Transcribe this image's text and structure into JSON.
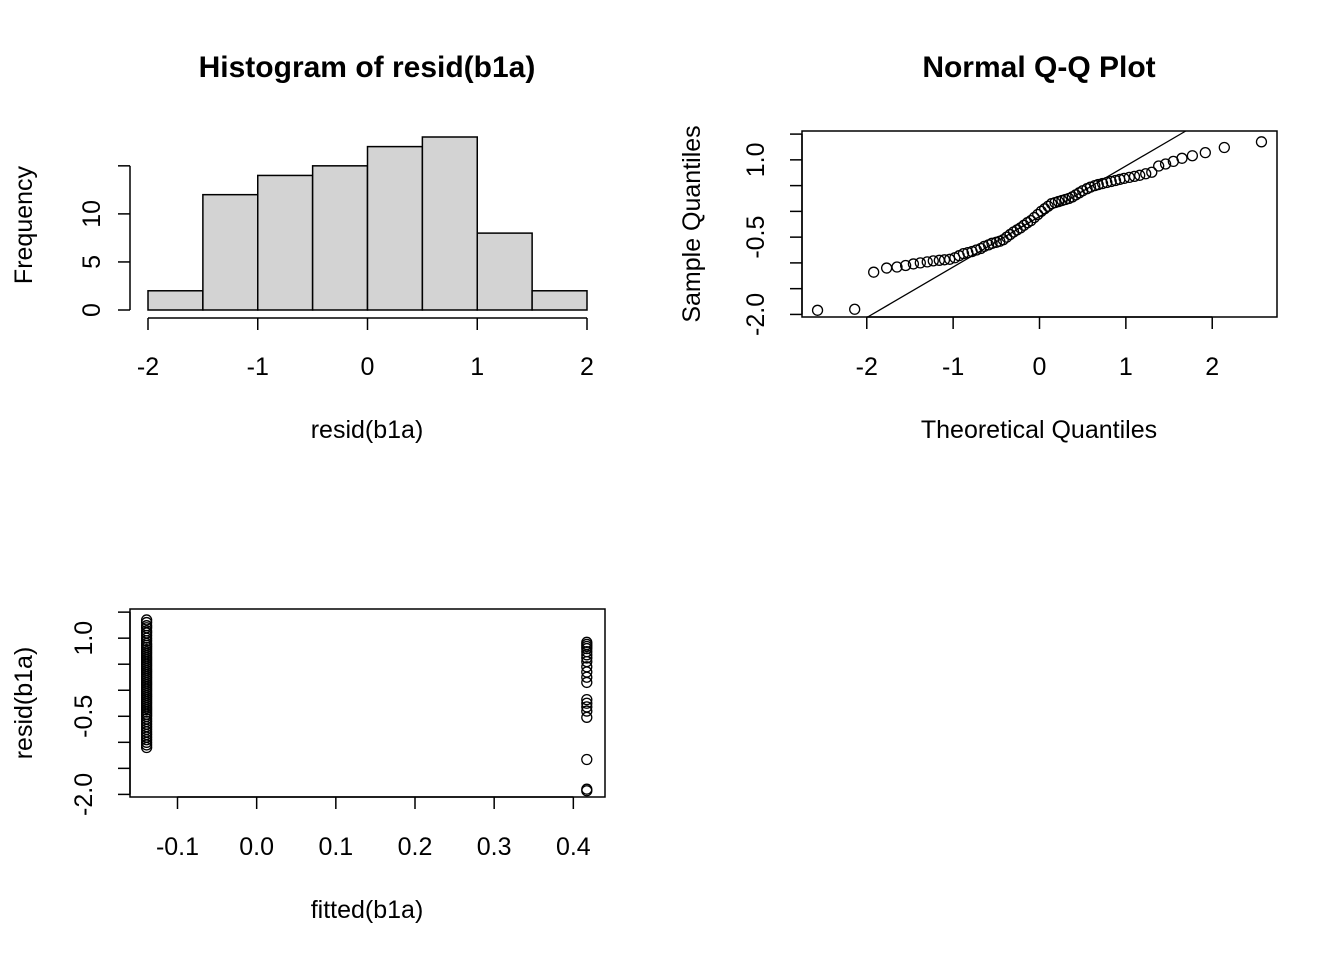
{
  "colors": {
    "bar_fill": "#d3d3d3",
    "stroke": "#000000",
    "background": "#ffffff"
  },
  "chart_data": [
    {
      "id": "hist",
      "type": "bar",
      "title": "Histogram of resid(b1a)",
      "xlabel": "resid(b1a)",
      "ylabel": "Frequency",
      "bins": [
        {
          "from": -2.0,
          "to": -1.5,
          "count": 2
        },
        {
          "from": -1.5,
          "to": -1.0,
          "count": 12
        },
        {
          "from": -1.0,
          "to": -0.5,
          "count": 14
        },
        {
          "from": -0.5,
          "to": 0.0,
          "count": 15
        },
        {
          "from": 0.0,
          "to": 0.5,
          "count": 17
        },
        {
          "from": 0.5,
          "to": 1.0,
          "count": 18
        },
        {
          "from": 1.0,
          "to": 1.5,
          "count": 8
        },
        {
          "from": 1.5,
          "to": 2.0,
          "count": 2
        }
      ],
      "xlim": [
        -2,
        2
      ],
      "ylim": [
        0,
        18
      ],
      "xticks": [
        -2,
        -1,
        0,
        1,
        2
      ],
      "xtick_labels": [
        "-2",
        "-1",
        "0",
        "1",
        "2"
      ],
      "yticks": [
        0,
        5,
        10,
        15
      ],
      "ytick_labels": [
        "0",
        "5",
        "10",
        ""
      ],
      "grid": false
    },
    {
      "id": "qq",
      "type": "scatter",
      "title": "Normal Q-Q Plot",
      "xlabel": "Theoretical Quantiles",
      "ylabel": "Sample Quantiles",
      "xlim": [
        -2.75,
        2.75
      ],
      "ylim": [
        -2.05,
        1.56
      ],
      "xticks": [
        -2,
        -1,
        0,
        1,
        2
      ],
      "xtick_labels": [
        "-2",
        "-1",
        "0",
        "1",
        "2"
      ],
      "yticks": [
        -2.0,
        -1.5,
        -1.0,
        -0.5,
        0.0,
        0.5,
        1.0,
        1.5
      ],
      "ytick_labels": [
        "-2.0",
        "",
        "",
        "-0.5",
        "",
        "",
        "1.0",
        ""
      ],
      "reference_line": {
        "intercept": -0.1,
        "slope": 0.98
      },
      "points": [
        [
          -2.57,
          -1.92
        ],
        [
          -2.14,
          -1.9
        ],
        [
          -1.92,
          -1.18
        ],
        [
          -1.77,
          -1.1
        ],
        [
          -1.65,
          -1.08
        ],
        [
          -1.55,
          -1.05
        ],
        [
          -1.46,
          -1.02
        ],
        [
          -1.38,
          -1.0
        ],
        [
          -1.3,
          -0.98
        ],
        [
          -1.23,
          -0.96
        ],
        [
          -1.16,
          -0.95
        ],
        [
          -1.1,
          -0.94
        ],
        [
          -1.04,
          -0.93
        ],
        [
          -0.98,
          -0.9
        ],
        [
          -0.93,
          -0.86
        ],
        [
          -0.88,
          -0.82
        ],
        [
          -0.83,
          -0.8
        ],
        [
          -0.78,
          -0.78
        ],
        [
          -0.73,
          -0.75
        ],
        [
          -0.68,
          -0.72
        ],
        [
          -0.64,
          -0.68
        ],
        [
          -0.59,
          -0.65
        ],
        [
          -0.55,
          -0.62
        ],
        [
          -0.5,
          -0.6
        ],
        [
          -0.46,
          -0.58
        ],
        [
          -0.42,
          -0.55
        ],
        [
          -0.38,
          -0.5
        ],
        [
          -0.34,
          -0.45
        ],
        [
          -0.3,
          -0.4
        ],
        [
          -0.26,
          -0.36
        ],
        [
          -0.22,
          -0.32
        ],
        [
          -0.18,
          -0.27
        ],
        [
          -0.14,
          -0.22
        ],
        [
          -0.1,
          -0.18
        ],
        [
          -0.06,
          -0.12
        ],
        [
          -0.02,
          -0.06
        ],
        [
          0.02,
          0.0
        ],
        [
          0.06,
          0.05
        ],
        [
          0.1,
          0.1
        ],
        [
          0.14,
          0.15
        ],
        [
          0.18,
          0.17
        ],
        [
          0.22,
          0.19
        ],
        [
          0.26,
          0.21
        ],
        [
          0.3,
          0.23
        ],
        [
          0.34,
          0.25
        ],
        [
          0.38,
          0.28
        ],
        [
          0.42,
          0.32
        ],
        [
          0.46,
          0.36
        ],
        [
          0.5,
          0.4
        ],
        [
          0.55,
          0.44
        ],
        [
          0.59,
          0.47
        ],
        [
          0.64,
          0.5
        ],
        [
          0.68,
          0.52
        ],
        [
          0.73,
          0.54
        ],
        [
          0.78,
          0.56
        ],
        [
          0.83,
          0.58
        ],
        [
          0.88,
          0.6
        ],
        [
          0.93,
          0.62
        ],
        [
          0.98,
          0.64
        ],
        [
          1.04,
          0.66
        ],
        [
          1.1,
          0.68
        ],
        [
          1.16,
          0.7
        ],
        [
          1.23,
          0.73
        ],
        [
          1.3,
          0.76
        ],
        [
          1.38,
          0.88
        ],
        [
          1.46,
          0.92
        ],
        [
          1.55,
          0.97
        ],
        [
          1.65,
          1.03
        ],
        [
          1.77,
          1.08
        ],
        [
          1.92,
          1.14
        ],
        [
          2.14,
          1.24
        ],
        [
          2.57,
          1.35
        ]
      ],
      "grid": false
    },
    {
      "id": "resfit",
      "type": "scatter",
      "title": "",
      "xlabel": "fitted(b1a)",
      "ylabel": "resid(b1a)",
      "xlim": [
        -0.16,
        0.44
      ],
      "ylim": [
        -2.05,
        1.56
      ],
      "xticks": [
        -0.1,
        0.0,
        0.1,
        0.2,
        0.3,
        0.4
      ],
      "xtick_labels": [
        "-0.1",
        "0.0",
        "0.1",
        "0.2",
        "0.3",
        "0.4"
      ],
      "yticks": [
        -2.0,
        -1.5,
        -1.0,
        -0.5,
        0.0,
        0.5,
        1.0,
        1.5
      ],
      "ytick_labels": [
        "-2.0",
        "",
        "",
        "-0.5",
        "",
        "",
        "1.0",
        ""
      ],
      "groups": [
        {
          "x": -0.139,
          "y": [
            1.35,
            1.3,
            1.24,
            1.2,
            1.14,
            1.1,
            1.05,
            1.0,
            0.95,
            0.9,
            0.86,
            0.82,
            0.78,
            0.74,
            0.7,
            0.66,
            0.62,
            0.58,
            0.54,
            0.5,
            0.46,
            0.42,
            0.38,
            0.34,
            0.3,
            0.26,
            0.22,
            0.18,
            0.14,
            0.1,
            0.06,
            0.02,
            -0.02,
            -0.06,
            -0.1,
            -0.14,
            -0.18,
            -0.22,
            -0.26,
            -0.3,
            -0.34,
            -0.38,
            -0.42,
            -0.46,
            -0.5,
            -0.55,
            -0.6,
            -0.65,
            -0.7,
            -0.75,
            -0.8,
            -0.85,
            -0.9,
            -0.95,
            -1.0,
            -1.05,
            -1.1
          ]
        },
        {
          "x": 0.417,
          "y": [
            0.92,
            0.88,
            0.84,
            0.8,
            0.74,
            0.68,
            0.62,
            0.55,
            0.45,
            0.35,
            0.25,
            0.15,
            -0.18,
            -0.25,
            -0.32,
            -0.4,
            -0.52,
            -1.33,
            -1.9,
            -1.93
          ]
        }
      ],
      "grid": false
    }
  ]
}
